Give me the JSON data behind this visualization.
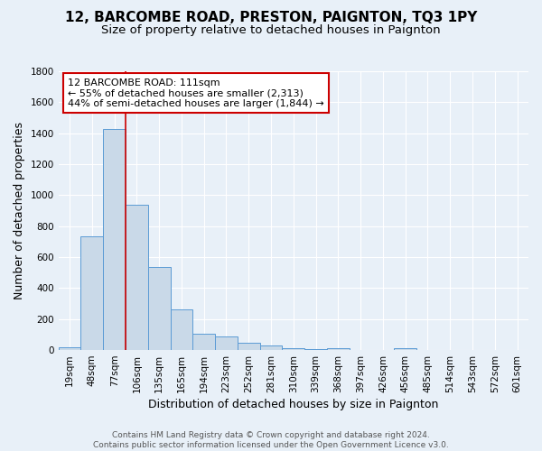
{
  "title": "12, BARCOMBE ROAD, PRESTON, PAIGNTON, TQ3 1PY",
  "subtitle": "Size of property relative to detached houses in Paignton",
  "xlabel": "Distribution of detached houses by size in Paignton",
  "ylabel": "Number of detached properties",
  "categories": [
    "19sqm",
    "48sqm",
    "77sqm",
    "106sqm",
    "135sqm",
    "165sqm",
    "194sqm",
    "223sqm",
    "252sqm",
    "281sqm",
    "310sqm",
    "339sqm",
    "368sqm",
    "397sqm",
    "426sqm",
    "456sqm",
    "485sqm",
    "514sqm",
    "543sqm",
    "572sqm",
    "601sqm"
  ],
  "values": [
    20,
    735,
    1430,
    940,
    535,
    265,
    105,
    90,
    48,
    28,
    14,
    5,
    13,
    3,
    0,
    13,
    0,
    0,
    0,
    0,
    0
  ],
  "bar_color": "#c9d9e8",
  "bar_edge_color": "#5b9bd5",
  "vline_index": 3,
  "annotation_text": "12 BARCOMBE ROAD: 111sqm\n← 55% of detached houses are smaller (2,313)\n44% of semi-detached houses are larger (1,844) →",
  "annotation_box_color": "#ffffff",
  "annotation_box_edge_color": "#cc0000",
  "vline_color": "#cc0000",
  "background_color": "#e8f0f8",
  "footer_text": "Contains HM Land Registry data © Crown copyright and database right 2024.\nContains public sector information licensed under the Open Government Licence v3.0.",
  "ylim": [
    0,
    1800
  ],
  "yticks": [
    0,
    200,
    400,
    600,
    800,
    1000,
    1200,
    1400,
    1600,
    1800
  ],
  "title_fontsize": 11,
  "subtitle_fontsize": 9.5,
  "axis_label_fontsize": 9,
  "tick_fontsize": 7.5,
  "footer_fontsize": 6.5
}
